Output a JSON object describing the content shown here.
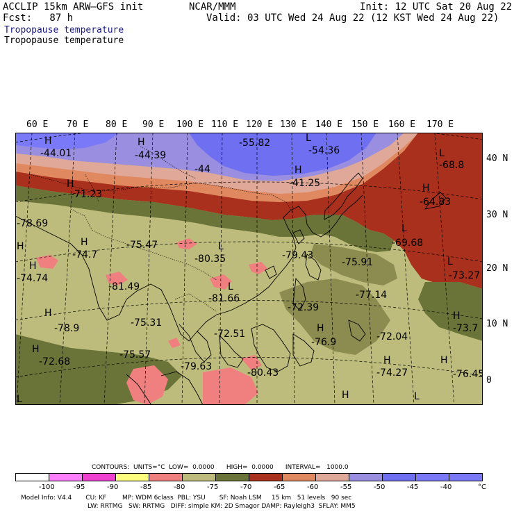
{
  "header": {
    "model": "ACCLIP 15km ARW–GFS init",
    "fcst": "Fcst:   87 h",
    "center": "NCAR/MMM",
    "init": "Init: 12 UTC Sat 20 Aug 22",
    "valid": "Valid: 03 UTC Wed 24 Aug 22 (12 KST Wed 24 Aug 22)",
    "field1": "Tropopause temperature",
    "field2": "Tropopause temperature"
  },
  "lon_labels": [
    "60 E",
    "70 E",
    "80 E",
    "90 E",
    "100 E",
    "110 E",
    "120 E",
    "130 E",
    "140 E",
    "150 E",
    "160 E",
    "170 E"
  ],
  "lat_labels": [
    "40 N",
    "30 N",
    "20 N",
    "10 N",
    "0"
  ],
  "colors": {
    "purple": "#9a8ee0",
    "blue": "#6f6ff2",
    "pink_mauve": "#e0a898",
    "salmon": "#e08860",
    "dark_red": "#a8301c",
    "olive_dark": "#6b7438",
    "olive_light": "#bdbc7c",
    "pink": "#f08080",
    "green_mid": "#8c8c50"
  },
  "map_labels": [
    {
      "t": "H"
    },
    {
      "t": "-44.01"
    },
    {
      "t": "H"
    },
    {
      "t": "-44.39"
    },
    {
      "t": "-55.82"
    },
    {
      "t": "L"
    },
    {
      "t": "-54.36"
    },
    {
      "t": "-44"
    },
    {
      "t": "H"
    },
    {
      "t": "-41.25"
    },
    {
      "t": "L"
    },
    {
      "t": "-68.8"
    },
    {
      "t": "H"
    },
    {
      "t": "-71.23"
    },
    {
      "t": "H"
    },
    {
      "t": "-64.83"
    },
    {
      "t": "-78.69"
    },
    {
      "t": "H"
    },
    {
      "t": "-75.47"
    },
    {
      "t": "L"
    },
    {
      "t": "L"
    },
    {
      "t": "-69.68"
    },
    {
      "t": "H"
    },
    {
      "t": "-74.7"
    },
    {
      "t": "-80.35"
    },
    {
      "t": "-79.43"
    },
    {
      "t": "-75.91"
    },
    {
      "t": "L"
    },
    {
      "t": "H"
    },
    {
      "t": "-74.74"
    },
    {
      "t": "-81.49"
    },
    {
      "t": "L"
    },
    {
      "t": "-73.27"
    },
    {
      "t": "-81.66"
    },
    {
      "t": "-77.14"
    },
    {
      "t": "-72.39"
    },
    {
      "t": "H"
    },
    {
      "t": "-78.9"
    },
    {
      "t": "-75.31"
    },
    {
      "t": "H"
    },
    {
      "t": "-72.51"
    },
    {
      "t": "-73.7"
    },
    {
      "t": "-72.04"
    },
    {
      "t": "H"
    },
    {
      "t": "-76.9"
    },
    {
      "t": "-72.68"
    },
    {
      "t": "-75.57"
    },
    {
      "t": "H"
    },
    {
      "t": "H"
    },
    {
      "t": "-79.63"
    },
    {
      "t": "-74.27"
    },
    {
      "t": "-76.45"
    },
    {
      "t": "-80.43"
    },
    {
      "t": "H"
    },
    {
      "t": "H"
    },
    {
      "t": "L"
    },
    {
      "t": "L"
    }
  ],
  "legend": {
    "contours": "CONTOURS:  UNITS=°C  LOW=  0.0000      HIGH=  0.0000      INTERVAL=   1000.0",
    "ticks": [
      "-100",
      "-95",
      "-90",
      "-85",
      "-80",
      "-75",
      "-70",
      "-65",
      "-60",
      "-55",
      "-50",
      "-45",
      "-40",
      "°C"
    ],
    "colors": [
      "#ffffff",
      "#ff80ff",
      "#f040d0",
      "#ffff80",
      "#f08080",
      "#bdbc7c",
      "#6b7438",
      "#a8301c",
      "#e08860",
      "#e0a898",
      "#9a8ee0",
      "#6f6ff2",
      "#7a7af8"
    ]
  },
  "footer": {
    "line1": "Model Info: V4.4       CU: KF        MP: WDM 6class  PBL: YSU       SF: Noah LSM     15 km   51 levels   90 sec",
    "line2": "LW: RRTMG   SW: RRTMG   DIFF: simple KM: 2D Smagor DAMP: Rayleigh3  SFLAY: MM5"
  }
}
